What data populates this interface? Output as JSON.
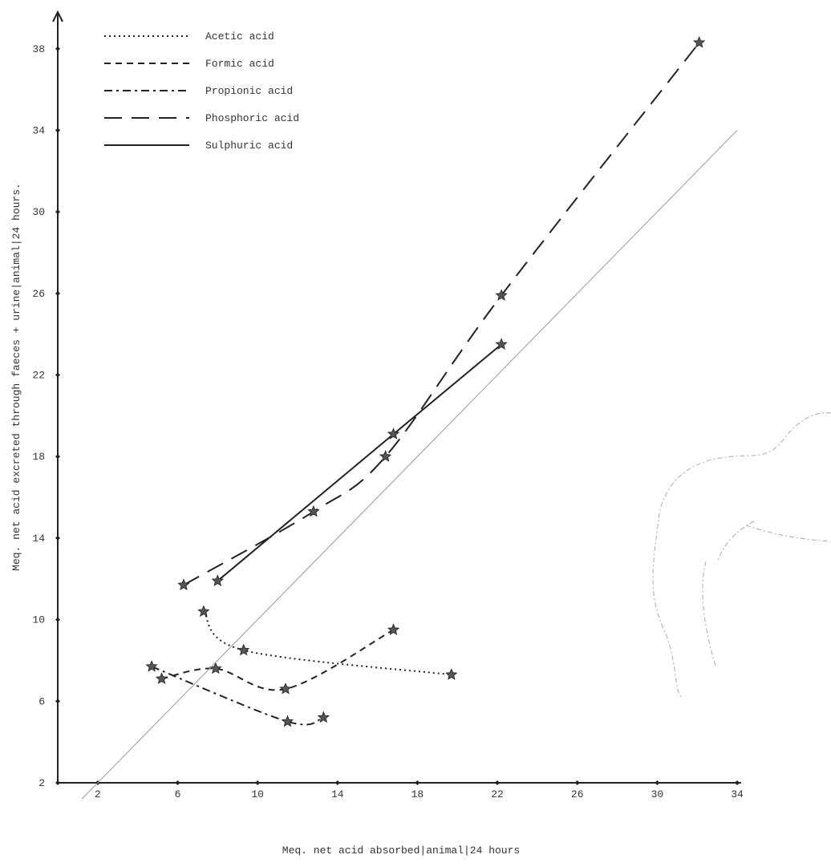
{
  "chart_data": {
    "type": "line",
    "x_label": "Meq. net acid absorbed|animal|24 hours",
    "y_label": "Meq. net acid excreted through faeces + urine|animal|24 hours.",
    "xlim": [
      0,
      34.2
    ],
    "ylim": [
      2,
      39.8
    ],
    "xticks": [
      2,
      6,
      10,
      14,
      18,
      22,
      26,
      30,
      34
    ],
    "yticks": [
      2,
      6,
      10,
      14,
      18,
      22,
      26,
      30,
      34,
      38
    ],
    "legend": "top-left",
    "series": [
      {
        "name": "Acetic acid",
        "style": "dotted",
        "color": "#222222",
        "x": [
          7.3,
          9.3,
          19.7
        ],
        "values": [
          10.4,
          8.5,
          7.3
        ]
      },
      {
        "name": "Formic acid",
        "style": "dashed",
        "color": "#222222",
        "x": [
          5.2,
          7.9,
          11.4,
          16.8
        ],
        "values": [
          7.1,
          7.6,
          6.6,
          9.5
        ]
      },
      {
        "name": "Propionic acid",
        "style": "dashdot",
        "color": "#222222",
        "x": [
          4.7,
          11.5,
          13.3
        ],
        "values": [
          7.7,
          5.0,
          5.2
        ]
      },
      {
        "name": "Phosphoric acid",
        "style": "longdash",
        "color": "#222222",
        "x": [
          6.3,
          12.8,
          16.4,
          22.2,
          32.1
        ],
        "values": [
          11.7,
          15.3,
          18.0,
          25.9,
          38.3
        ]
      },
      {
        "name": "Sulphuric acid",
        "style": "solid",
        "color": "#222222",
        "x": [
          8.0,
          16.8,
          22.2
        ],
        "values": [
          11.9,
          19.1,
          23.5
        ]
      },
      {
        "style": "thin",
        "color": "#9a9a9a",
        "x": [
          1.2,
          34
        ],
        "values": [
          1.2,
          34
        ]
      }
    ]
  }
}
